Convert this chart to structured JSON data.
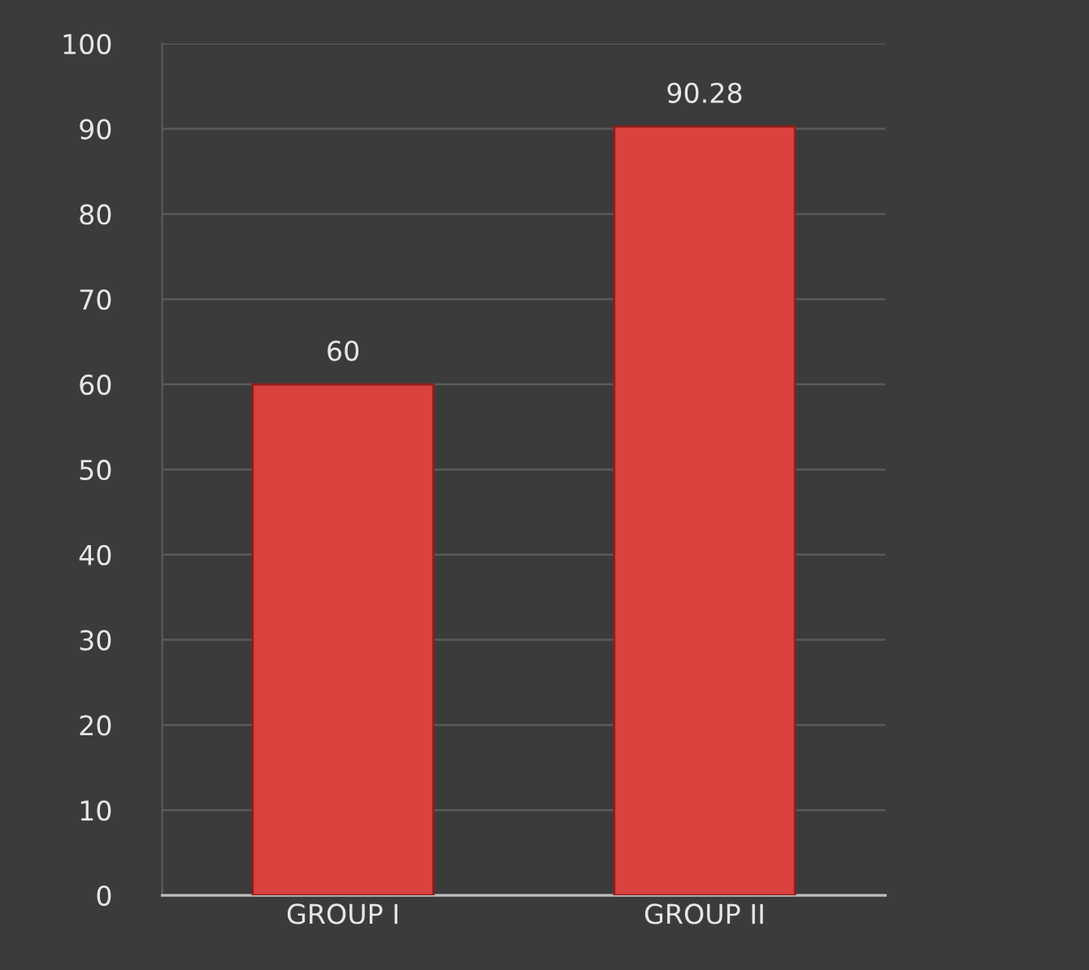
{
  "chart_data": {
    "type": "bar",
    "categories": [
      "GROUP I",
      "GROUP II"
    ],
    "values": [
      60,
      90.28
    ],
    "color": "#d9423e",
    "ylim": [
      0,
      100
    ],
    "yticks": [
      0,
      10,
      20,
      30,
      40,
      50,
      60,
      70,
      80,
      90,
      100
    ],
    "grid": "y",
    "data_labels": true,
    "legend": false
  }
}
